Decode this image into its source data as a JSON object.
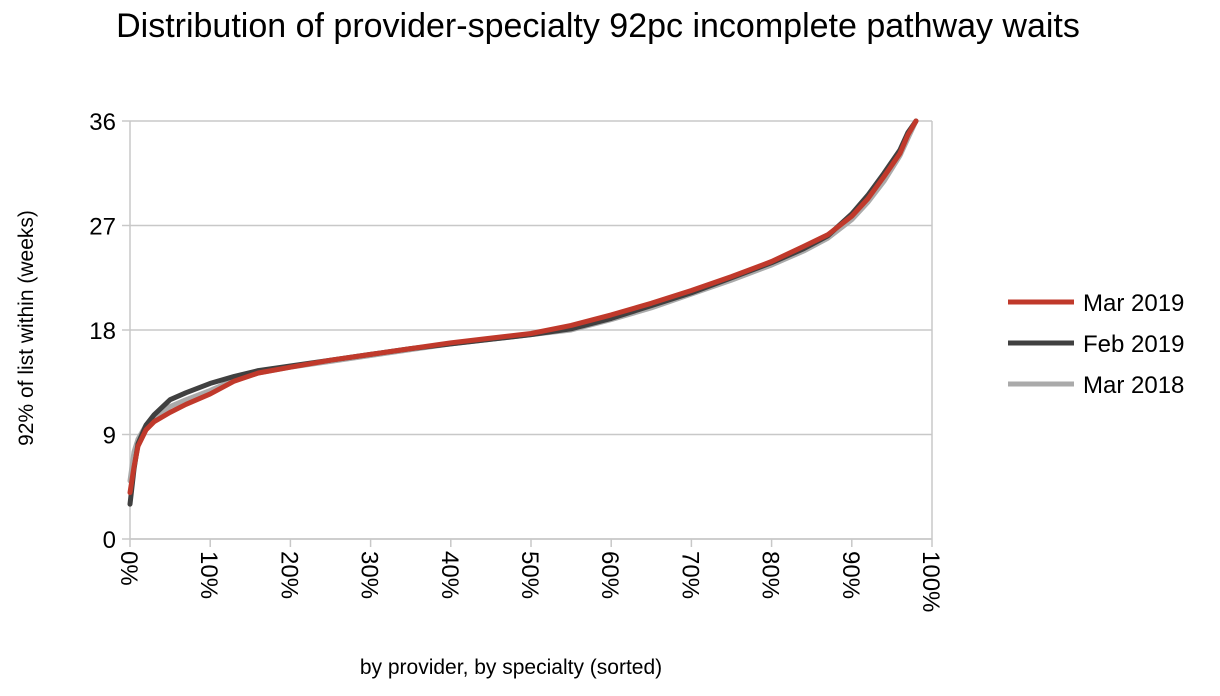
{
  "chart_data": {
    "type": "line",
    "title": "Distribution of provider-specialty 92pc incomplete pathway waits",
    "xlabel": "by provider, by specialty (sorted)",
    "ylabel": "92% of list within (weeks)",
    "ylim": [
      0,
      36
    ],
    "xlim": [
      0,
      100
    ],
    "y_ticks": [
      "0",
      "9",
      "18",
      "27",
      "36"
    ],
    "x_ticks": [
      "0%",
      "10%",
      "20%",
      "30%",
      "40%",
      "50%",
      "60%",
      "70%",
      "80%",
      "90%",
      "100%"
    ],
    "grid": "horizontal",
    "legend_position": "right",
    "series": [
      {
        "name": "Mar 2018",
        "color": "#aaaaaa",
        "x": [
          0,
          0.5,
          1,
          2,
          3,
          5,
          7,
          10,
          13,
          16,
          20,
          25,
          30,
          35,
          40,
          45,
          50,
          55,
          60,
          65,
          70,
          75,
          80,
          84,
          87,
          90,
          92,
          94,
          96,
          97,
          98
        ],
        "y": [
          5.0,
          7.5,
          8.6,
          9.8,
          10.5,
          11.4,
          12.0,
          12.8,
          13.7,
          14.3,
          14.8,
          15.3,
          15.8,
          16.3,
          16.8,
          17.2,
          17.6,
          18.0,
          18.9,
          19.9,
          21.1,
          22.3,
          23.6,
          24.8,
          25.9,
          27.5,
          29.0,
          30.8,
          33.0,
          34.5,
          36.0
        ]
      },
      {
        "name": "Feb 2019",
        "color": "#404040",
        "x": [
          0,
          0.5,
          1,
          2,
          3,
          5,
          7,
          10,
          13,
          16,
          20,
          25,
          30,
          35,
          40,
          45,
          50,
          55,
          60,
          65,
          70,
          75,
          80,
          84,
          87,
          90,
          92,
          94,
          96,
          97,
          98
        ],
        "y": [
          3.0,
          6.0,
          8.2,
          9.8,
          10.7,
          12.0,
          12.6,
          13.4,
          14.0,
          14.5,
          14.9,
          15.4,
          15.9,
          16.4,
          16.8,
          17.2,
          17.6,
          18.1,
          19.0,
          20.1,
          21.2,
          22.5,
          23.8,
          25.0,
          26.1,
          28.0,
          29.6,
          31.5,
          33.5,
          35.0,
          36.0
        ]
      },
      {
        "name": "Mar 2019",
        "color": "#c0392b",
        "x": [
          0,
          0.5,
          1,
          2,
          3,
          5,
          7,
          10,
          13,
          16,
          20,
          25,
          30,
          35,
          40,
          45,
          50,
          55,
          60,
          65,
          70,
          75,
          80,
          84,
          87,
          90,
          92,
          94,
          96,
          97,
          98
        ],
        "y": [
          4.0,
          6.2,
          8.0,
          9.4,
          10.1,
          10.9,
          11.6,
          12.5,
          13.6,
          14.3,
          14.8,
          15.4,
          15.9,
          16.4,
          16.9,
          17.3,
          17.7,
          18.4,
          19.3,
          20.3,
          21.4,
          22.6,
          23.9,
          25.2,
          26.2,
          27.8,
          29.3,
          31.2,
          33.2,
          34.8,
          36.0
        ]
      }
    ]
  }
}
